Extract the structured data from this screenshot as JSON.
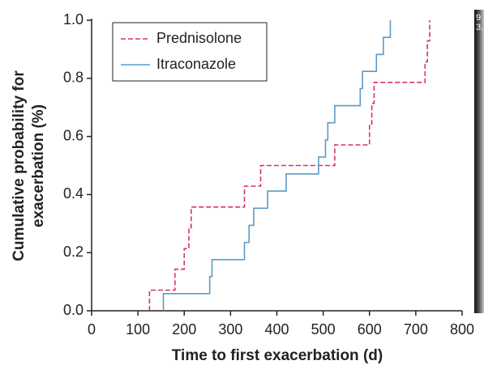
{
  "chart_data": {
    "type": "step",
    "x_label": "Time to first exacerbation (d)",
    "y_label": [
      "Cumulative probability for",
      "exacerbation (%)"
    ],
    "xlim": [
      0,
      800
    ],
    "xticks": [
      0,
      100,
      200,
      300,
      400,
      500,
      600,
      700,
      800
    ],
    "ylim": [
      0,
      1
    ],
    "yticks": [
      {
        "value": 0,
        "label": "0.0"
      },
      {
        "value": 0.2,
        "label": "0.2"
      },
      {
        "value": 0.4,
        "label": "0.4"
      },
      {
        "value": 0.6,
        "label": "0.6"
      },
      {
        "value": 0.8,
        "label": "0.8"
      },
      {
        "value": 1,
        "label": "1.0"
      }
    ],
    "legend": "upper left",
    "series": [
      {
        "name": "Prednisolone",
        "color": "#d6336c",
        "dash": true,
        "x": [
          125,
          180,
          200,
          210,
          215,
          330,
          365,
          525,
          600,
          605,
          610,
          720,
          725,
          730
        ],
        "values": [
          0.071,
          0.143,
          0.214,
          0.286,
          0.357,
          0.429,
          0.5,
          0.571,
          0.643,
          0.714,
          0.786,
          0.857,
          0.929,
          1.0
        ]
      },
      {
        "name": "Itraconazole",
        "color": "#5b9bc8",
        "dash": false,
        "x": [
          155,
          255,
          260,
          330,
          340,
          350,
          380,
          420,
          490,
          505,
          510,
          525,
          580,
          585,
          615,
          630,
          645
        ],
        "values": [
          0.059,
          0.118,
          0.176,
          0.235,
          0.294,
          0.353,
          0.412,
          0.471,
          0.529,
          0.588,
          0.647,
          0.706,
          0.765,
          0.824,
          0.882,
          0.941,
          1.0
        ]
      }
    ]
  },
  "side_panel": {
    "lines": [
      "9",
      "3."
    ]
  }
}
